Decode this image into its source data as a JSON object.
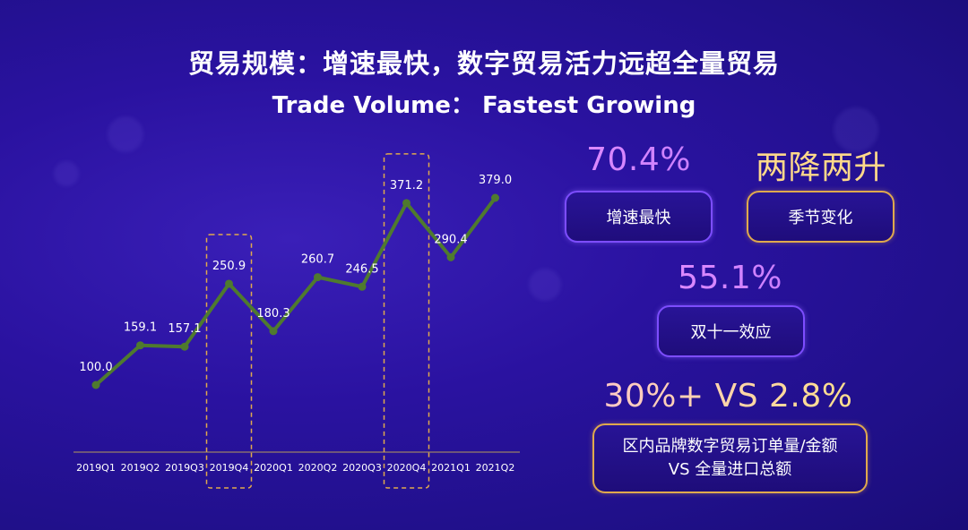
{
  "header": {
    "title_cn": "贸易规模：增速最快，数字贸易活力远超全量贸易",
    "title_en": "Trade Volume： Fastest Growing"
  },
  "chart_data": {
    "type": "line",
    "categories": [
      "2019Q1",
      "2019Q2",
      "2019Q3",
      "2019Q4",
      "2020Q1",
      "2020Q2",
      "2020Q3",
      "2020Q4",
      "2021Q1",
      "2021Q2"
    ],
    "values": [
      100.0,
      159.1,
      157.1,
      250.9,
      180.3,
      260.7,
      246.5,
      371.2,
      290.4,
      379.0
    ],
    "value_labels": [
      "100.0",
      "159.1",
      "157.1",
      "250.9",
      "180.3",
      "260.7",
      "246.5",
      "371.2",
      "290.4",
      "379.0"
    ],
    "highlighted_categories": [
      "2019Q4",
      "2020Q4"
    ],
    "line_color": "#4f7a2e",
    "highlight_color": "#e0a94d",
    "ylim": [
      0,
      400
    ],
    "grid": false,
    "title": "",
    "xlabel": "",
    "ylabel": ""
  },
  "stats": {
    "growth_value": "70.4%",
    "growth_label": "增速最快",
    "seasonal_value": "两降两升",
    "seasonal_label": "季节变化",
    "double11_value": "55.1%",
    "double11_label": "双十一效应",
    "compare_value": "30%+ VS 2.8%",
    "compare_label_line1": "区内品牌数字贸易订单量/金额",
    "compare_label_line2": "VS 全量进口总额"
  }
}
